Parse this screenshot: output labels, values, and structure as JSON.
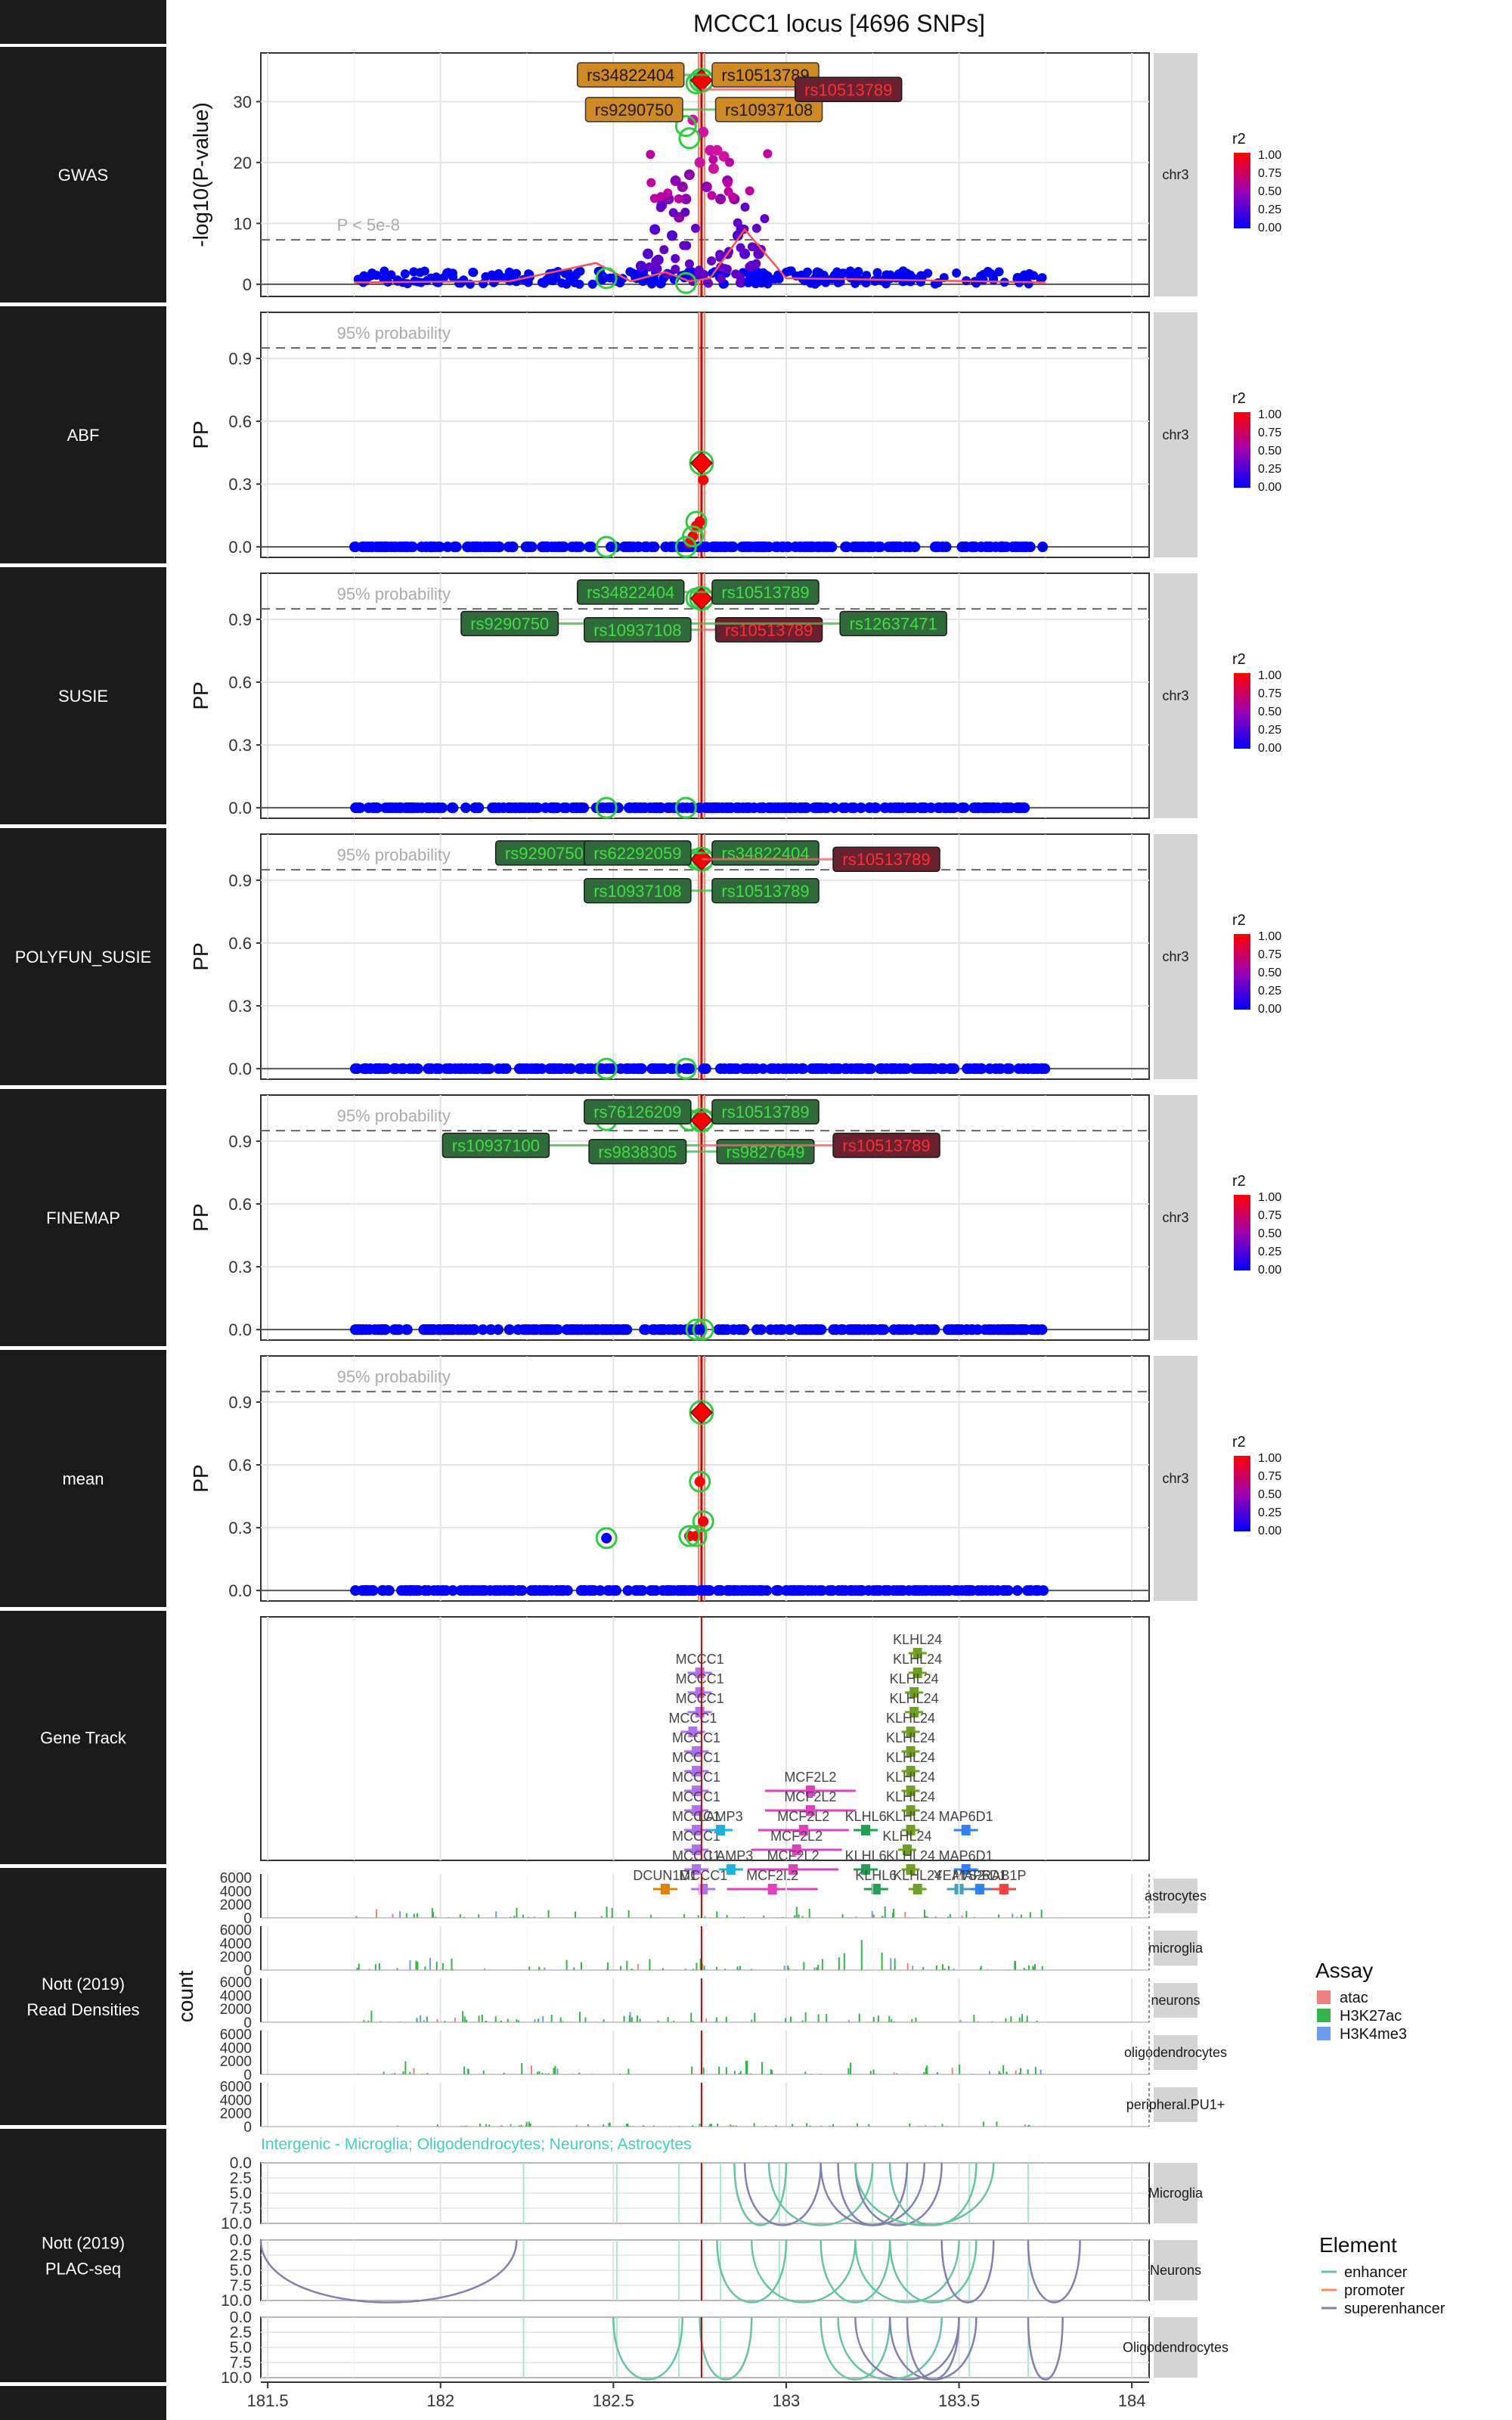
{
  "title": "MCCC1 locus [4696 SNPs]",
  "strip_label": "chr3",
  "colors": {
    "low": "#0000ff",
    "mid": "#a000b0",
    "high": "#ff0000",
    "lead": "#ff0000",
    "credible_ring": "#2ecc40",
    "grid": "#e3e3e3",
    "panel_bg": "#1a1a1a"
  },
  "x_axis": {
    "range": [
      181.48,
      184.05
    ],
    "ticks": [
      "181.5",
      "182",
      "182.5",
      "183",
      "183.5",
      "184"
    ],
    "tick_values": [
      181.5,
      182,
      182.5,
      183,
      183.5,
      184
    ]
  },
  "lead_snp_x": 182.755,
  "r2_legend": {
    "title": "r2",
    "labels": [
      "1.00",
      "0.75",
      "0.50",
      "0.25",
      "0.00"
    ]
  },
  "rows": [
    {
      "name": "GWAS",
      "ylabel": "-log10(P-value)",
      "ylim": [
        -2,
        38
      ],
      "yticks": [
        0,
        10,
        20,
        30
      ],
      "ytick_labels": [
        "0",
        "10",
        "20",
        "30"
      ],
      "threshold": 7.3,
      "threshold_label": "P < 5e-8",
      "labels": [
        {
          "text": "rs34822404",
          "x": 182.55,
          "y": 34.4,
          "style": "orange"
        },
        {
          "text": "rs10513789",
          "x": 182.94,
          "y": 34.4,
          "style": "orange"
        },
        {
          "text": "rs9290750",
          "x": 182.56,
          "y": 28.7,
          "style": "orange"
        },
        {
          "text": "rs10937108",
          "x": 182.95,
          "y": 28.7,
          "style": "orange"
        },
        {
          "text": "rs10513789",
          "x": 183.18,
          "y": 32.0,
          "style": "red"
        }
      ]
    },
    {
      "name": "ABF",
      "ylabel": "PP",
      "ylim": [
        -0.05,
        1.12
      ],
      "yticks": [
        0,
        0.3,
        0.6,
        0.9
      ],
      "ytick_labels": [
        "0.0",
        "0.3",
        "0.6",
        "0.9"
      ],
      "threshold": 0.95,
      "threshold_label": "95% probability",
      "labels": []
    },
    {
      "name": "SUSIE",
      "ylabel": "PP",
      "ylim": [
        -0.05,
        1.12
      ],
      "yticks": [
        0,
        0.3,
        0.6,
        0.9
      ],
      "ytick_labels": [
        "0.0",
        "0.3",
        "0.6",
        "0.9"
      ],
      "threshold": 0.95,
      "threshold_label": "95% probability",
      "labels": [
        {
          "text": "rs34822404",
          "x": 182.55,
          "y": 1.03,
          "style": "green"
        },
        {
          "text": "rs10513789",
          "x": 182.94,
          "y": 1.03,
          "style": "green"
        },
        {
          "text": "rs9290750",
          "x": 182.2,
          "y": 0.88,
          "style": "green"
        },
        {
          "text": "rs10937108",
          "x": 182.57,
          "y": 0.85,
          "style": "green"
        },
        {
          "text": "rs10513789",
          "x": 182.95,
          "y": 0.85,
          "style": "red"
        },
        {
          "text": "rs12637471",
          "x": 183.31,
          "y": 0.88,
          "style": "green"
        }
      ]
    },
    {
      "name": "POLYFUN_SUSIE",
      "ylabel": "PP",
      "ylim": [
        -0.05,
        1.12
      ],
      "yticks": [
        0,
        0.3,
        0.6,
        0.9
      ],
      "ytick_labels": [
        "0.0",
        "0.3",
        "0.6",
        "0.9"
      ],
      "threshold": 0.95,
      "threshold_label": "95% probability",
      "labels": [
        {
          "text": "rs9290750",
          "x": 182.3,
          "y": 1.03,
          "style": "green"
        },
        {
          "text": "rs62292059",
          "x": 182.57,
          "y": 1.03,
          "style": "green"
        },
        {
          "text": "rs34822404",
          "x": 182.94,
          "y": 1.03,
          "style": "green"
        },
        {
          "text": "rs10513789",
          "x": 183.29,
          "y": 1.0,
          "style": "red"
        },
        {
          "text": "rs10937108",
          "x": 182.57,
          "y": 0.85,
          "style": "green"
        },
        {
          "text": "rs10513789",
          "x": 182.94,
          "y": 0.85,
          "style": "green"
        }
      ]
    },
    {
      "name": "FINEMAP",
      "ylabel": "PP",
      "ylim": [
        -0.05,
        1.12
      ],
      "yticks": [
        0,
        0.3,
        0.6,
        0.9
      ],
      "ytick_labels": [
        "0.0",
        "0.3",
        "0.6",
        "0.9"
      ],
      "threshold": 0.95,
      "threshold_label": "95% probability",
      "labels": [
        {
          "text": "rs76126209",
          "x": 182.57,
          "y": 1.04,
          "style": "green"
        },
        {
          "text": "rs10513789",
          "x": 182.94,
          "y": 1.04,
          "style": "green"
        },
        {
          "text": "rs10937100",
          "x": 182.16,
          "y": 0.88,
          "style": "green"
        },
        {
          "text": "rs9838305",
          "x": 182.57,
          "y": 0.85,
          "style": "green"
        },
        {
          "text": "rs9827649",
          "x": 182.94,
          "y": 0.85,
          "style": "green"
        },
        {
          "text": "rs10513789",
          "x": 183.29,
          "y": 0.88,
          "style": "red"
        }
      ]
    },
    {
      "name": "mean",
      "ylabel": "PP",
      "ylim": [
        -0.05,
        1.12
      ],
      "yticks": [
        0,
        0.3,
        0.6,
        0.9
      ],
      "ytick_labels": [
        "0.0",
        "0.3",
        "0.6",
        "0.9"
      ],
      "threshold": 0.95,
      "threshold_label": "95% probability",
      "labels": []
    }
  ],
  "chart_data": [
    {
      "type": "scatter",
      "panel": "GWAS",
      "xlabel": "",
      "ylabel": "-log10(P-value)",
      "ylim": [
        -2,
        38
      ],
      "lead": {
        "x": 182.755,
        "y": 33.5
      },
      "credible": [
        {
          "x": 182.74,
          "y": 33.0
        },
        {
          "x": 182.76,
          "y": 33.5
        },
        {
          "x": 182.71,
          "y": 26.0
        },
        {
          "x": 182.72,
          "y": 24.0
        },
        {
          "x": 182.48,
          "y": 1.0
        },
        {
          "x": 182.71,
          "y": 0.2
        }
      ],
      "peak_points": [
        [
          182.73,
          27
        ],
        [
          182.76,
          25
        ],
        [
          182.78,
          22
        ],
        [
          182.8,
          22
        ],
        [
          182.79,
          19
        ],
        [
          182.82,
          21
        ],
        [
          182.83,
          17
        ],
        [
          182.81,
          14
        ],
        [
          182.85,
          14
        ],
        [
          182.87,
          9
        ],
        [
          182.7,
          16
        ],
        [
          182.71,
          14
        ],
        [
          182.69,
          11
        ],
        [
          182.68,
          17
        ],
        [
          182.66,
          14
        ],
        [
          182.64,
          13
        ],
        [
          182.62,
          9
        ],
        [
          182.6,
          5
        ],
        [
          182.72,
          18
        ],
        [
          182.75,
          20
        ],
        [
          182.77,
          16
        ],
        [
          182.88,
          5
        ],
        [
          182.9,
          3
        ],
        [
          182.92,
          5
        ],
        [
          182.86,
          8
        ],
        [
          182.67,
          8
        ],
        [
          182.63,
          4
        ],
        [
          182.58,
          3
        ]
      ],
      "background_range": [
        181.75,
        183.75
      ]
    },
    {
      "type": "scatter",
      "panel": "ABF",
      "ylim": [
        -0.05,
        1.12
      ],
      "lead": {
        "x": 182.755,
        "y": 0.4
      },
      "points": [
        {
          "x": 182.76,
          "y": 0.32
        },
        {
          "x": 182.75,
          "y": 0.12
        },
        {
          "x": 182.74,
          "y": 0.1
        },
        {
          "x": 182.73,
          "y": 0.05
        },
        {
          "x": 182.72,
          "y": 0.02
        }
      ],
      "credible": [
        {
          "x": 182.48,
          "y": 0.0
        },
        {
          "x": 182.71,
          "y": 0.0
        },
        {
          "x": 182.74,
          "y": 0.12
        },
        {
          "x": 182.73,
          "y": 0.05
        }
      ]
    },
    {
      "type": "scatter",
      "panel": "SUSIE",
      "ylim": [
        -0.05,
        1.12
      ],
      "lead": {
        "x": 182.755,
        "y": 1.0
      },
      "credible": [
        {
          "x": 182.74,
          "y": 1.0
        },
        {
          "x": 182.76,
          "y": 1.0
        },
        {
          "x": 182.48,
          "y": 0.0
        },
        {
          "x": 182.71,
          "y": 0.0
        }
      ]
    },
    {
      "type": "scatter",
      "panel": "POLYFUN_SUSIE",
      "ylim": [
        -0.05,
        1.12
      ],
      "lead": {
        "x": 182.755,
        "y": 1.0
      },
      "credible": [
        {
          "x": 182.74,
          "y": 1.0
        },
        {
          "x": 182.76,
          "y": 1.0
        },
        {
          "x": 182.48,
          "y": 0.0
        },
        {
          "x": 182.71,
          "y": 0.0
        }
      ]
    },
    {
      "type": "scatter",
      "panel": "FINEMAP",
      "ylim": [
        -0.05,
        1.12
      ],
      "lead": {
        "x": 182.755,
        "y": 1.0
      },
      "credible": [
        {
          "x": 182.72,
          "y": 1.0
        },
        {
          "x": 182.76,
          "y": 1.0
        },
        {
          "x": 182.48,
          "y": 1.0
        },
        {
          "x": 182.74,
          "y": 0.0
        },
        {
          "x": 182.76,
          "y": 0.0
        }
      ]
    },
    {
      "type": "scatter",
      "panel": "mean",
      "ylim": [
        -0.05,
        1.12
      ],
      "lead": {
        "x": 182.755,
        "y": 0.85
      },
      "points": [
        {
          "x": 182.75,
          "y": 0.52
        },
        {
          "x": 182.76,
          "y": 0.33
        },
        {
          "x": 182.74,
          "y": 0.26
        },
        {
          "x": 182.48,
          "y": 0.25
        },
        {
          "x": 182.72,
          "y": 0.26
        }
      ],
      "credible": [
        {
          "x": 182.75,
          "y": 0.52
        },
        {
          "x": 182.76,
          "y": 0.33
        },
        {
          "x": 182.74,
          "y": 0.26
        },
        {
          "x": 182.48,
          "y": 0.25
        },
        {
          "x": 182.72,
          "y": 0.26
        }
      ]
    },
    {
      "type": "gene_track",
      "panel": "Gene Track",
      "genes": [
        {
          "name": "MCCC1",
          "x": 182.75,
          "track": 0
        },
        {
          "name": "MCCC1",
          "x": 182.75,
          "track": 1
        },
        {
          "name": "MCCC1",
          "x": 182.75,
          "track": 2
        },
        {
          "name": "MCCC1",
          "x": 182.73,
          "track": 3
        },
        {
          "name": "MCCC1",
          "x": 182.74,
          "track": 4
        },
        {
          "name": "MCCC1",
          "x": 182.74,
          "track": 5
        },
        {
          "name": "MCCC1",
          "x": 182.74,
          "track": 6
        },
        {
          "name": "MCCC1",
          "x": 182.74,
          "track": 7
        },
        {
          "name": "MCCC1",
          "x": 182.74,
          "track": 8
        },
        {
          "name": "MCCC1",
          "x": 182.74,
          "track": 9
        },
        {
          "name": "MCCC1",
          "x": 182.74,
          "track": 10
        },
        {
          "name": "LAMP3",
          "x": 182.81,
          "track": 8
        },
        {
          "name": "LAMP3",
          "x": 182.84,
          "track": 10
        },
        {
          "name": "DCUN1D1",
          "x": 182.65,
          "track": 11
        },
        {
          "name": "MCCC1",
          "x": 182.76,
          "track": 11
        },
        {
          "name": "MCF2L2",
          "x": 183.07,
          "track": 6
        },
        {
          "name": "MCF2L2",
          "x": 183.07,
          "track": 7
        },
        {
          "name": "MCF2L2",
          "x": 183.05,
          "track": 8
        },
        {
          "name": "MCF2L2",
          "x": 183.03,
          "track": 9
        },
        {
          "name": "MCF2L2",
          "x": 183.02,
          "track": 10
        },
        {
          "name": "MCF2L2",
          "x": 182.96,
          "track": 11
        },
        {
          "name": "KLHL24",
          "x": 183.38,
          "track": -1
        },
        {
          "name": "KLHL24",
          "x": 183.38,
          "track": 0
        },
        {
          "name": "KLHL24",
          "x": 183.37,
          "track": 1
        },
        {
          "name": "KLHL24",
          "x": 183.37,
          "track": 2
        },
        {
          "name": "KLHL24",
          "x": 183.36,
          "track": 3
        },
        {
          "name": "KLHL24",
          "x": 183.36,
          "track": 4
        },
        {
          "name": "KLHL24",
          "x": 183.36,
          "track": 5
        },
        {
          "name": "KLHL24",
          "x": 183.36,
          "track": 6
        },
        {
          "name": "KLHL24",
          "x": 183.36,
          "track": 7
        },
        {
          "name": "KLHL24",
          "x": 183.36,
          "track": 8
        },
        {
          "name": "KLHL24",
          "x": 183.35,
          "track": 9
        },
        {
          "name": "KLHL24",
          "x": 183.36,
          "track": 10
        },
        {
          "name": "KLHL24",
          "x": 183.38,
          "track": 11
        },
        {
          "name": "KLHL6",
          "x": 183.23,
          "track": 8
        },
        {
          "name": "KLHL6",
          "x": 183.23,
          "track": 10
        },
        {
          "name": "KLHL6",
          "x": 183.26,
          "track": 11
        },
        {
          "name": "MAP6D1",
          "x": 183.52,
          "track": 8
        },
        {
          "name": "MAP6D1",
          "x": 183.52,
          "track": 10
        },
        {
          "name": "MAP6D1",
          "x": 183.56,
          "track": 11
        },
        {
          "name": "YEATS2",
          "x": 183.5,
          "track": 11
        },
        {
          "name": "RAB1P",
          "x": 183.63,
          "track": 11
        }
      ],
      "gene_colors": {
        "MCCC1": "#b070f0",
        "LAMP3": "#20b0e0",
        "DCUN1D1": "#e08000",
        "MCF2L2": "#e040c0",
        "KLHL24": "#70a020",
        "KLHL6": "#20a050",
        "MAP6D1": "#3080ff",
        "YEATS2": "#40a0c0",
        "RAB1P": "#ff4040"
      }
    },
    {
      "type": "area",
      "panel": "Nott (2019) Read Densities",
      "ylabel": "count",
      "cell_types": [
        "astrocytes",
        "microglia",
        "neurons",
        "oligodendrocytes",
        "peripheral.PU1+"
      ],
      "yticks": [
        0,
        2000,
        4000,
        6000
      ],
      "ytick_labels": [
        "0",
        "2000",
        "4000",
        "6000"
      ],
      "assays": [
        {
          "name": "atac",
          "color": "#f08080"
        },
        {
          "name": "H3K27ac",
          "color": "#33b54a"
        },
        {
          "name": "H3K4me3",
          "color": "#6a9cf0"
        }
      ]
    },
    {
      "type": "arc",
      "panel": "Nott (2019) PLAC-seq",
      "annotation": "Intergenic - Microglia; Oligodendrocytes; Neurons; Astrocytes",
      "cell_types": [
        "Microglia",
        "Neurons",
        "Oligodendrocytes"
      ],
      "yticks": [
        0,
        2.5,
        5,
        7.5,
        10
      ],
      "ytick_labels": [
        "0.0",
        "2.5",
        "5.0",
        "7.5",
        "10.0"
      ],
      "elements": [
        {
          "name": "enhancer",
          "color": "#66c2a5"
        },
        {
          "name": "promoter",
          "color": "#fc8d62"
        },
        {
          "name": "superenhancer",
          "color": "#8080b0"
        }
      ]
    }
  ],
  "row_labels": {
    "gwas": "GWAS",
    "abf": "ABF",
    "susie": "SUSIE",
    "polyfun": "POLYFUN_SUSIE",
    "finemap": "FINEMAP",
    "mean": "mean",
    "gene": "Gene Track",
    "reads_1": "Nott (2019)",
    "reads_2": "Read Densities",
    "plac_1": "Nott (2019)",
    "plac_2": "PLAC-seq"
  },
  "legends": {
    "assay_title": "Assay",
    "assay_items": [
      "atac",
      "H3K27ac",
      "H3K4me3"
    ],
    "element_title": "Element",
    "element_items": [
      "enhancer",
      "promoter",
      "superenhancer"
    ]
  },
  "read_ylabel": "count"
}
